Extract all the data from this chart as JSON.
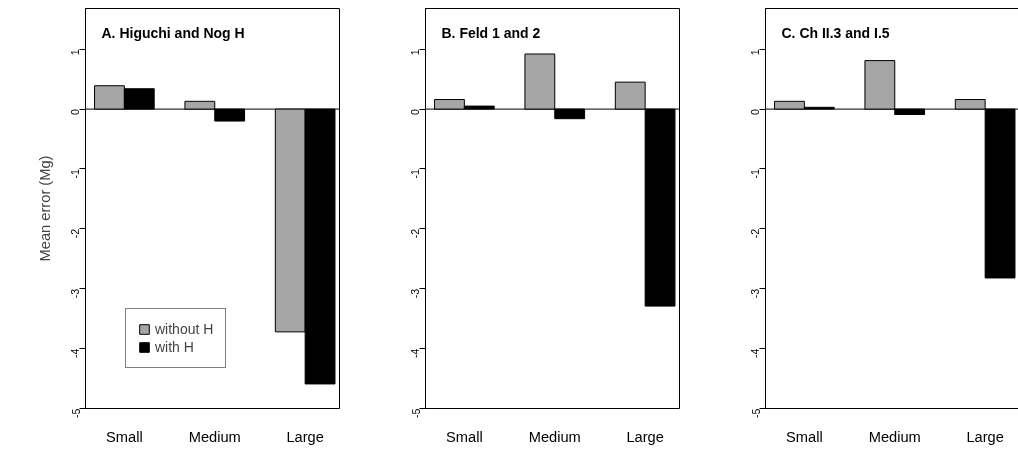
{
  "chart_data": [
    {
      "type": "bar",
      "title": "A. Higuchi and Nog H",
      "ylabel": "Mean error (Mg)",
      "categories": [
        "Small",
        "Medium",
        "Large"
      ],
      "legend": "bottom left",
      "ylim": [
        -5,
        1.68
      ],
      "yticks": [
        -5,
        -4,
        -3,
        -2,
        -1,
        0,
        1
      ],
      "ref_lines": [
        {
          "axis": "y",
          "value": 0,
          "color": "#000000"
        }
      ],
      "series": [
        {
          "name": "without H",
          "color": "#a6a6a6",
          "values": [
            0.39,
            0.13,
            -3.72
          ]
        },
        {
          "name": "with H",
          "color": "#000000",
          "values": [
            0.34,
            -0.2,
            -4.59
          ]
        }
      ]
    },
    {
      "type": "bar",
      "title": "B. Feld 1 and 2",
      "categories": [
        "Small",
        "Medium",
        "Large"
      ],
      "ylim": [
        -5,
        1.68
      ],
      "yticks": [
        -5,
        -4,
        -3,
        -2,
        -1,
        0,
        1
      ],
      "ref_lines": [
        {
          "axis": "y",
          "value": 0,
          "color": "#000000"
        }
      ],
      "series": [
        {
          "color": "#a6a6a6",
          "values": [
            0.16,
            0.92,
            0.45
          ]
        },
        {
          "color": "#000000",
          "values": [
            0.05,
            -0.16,
            -3.29
          ]
        }
      ]
    },
    {
      "type": "bar",
      "title": "C. Ch II.3 and I.5",
      "categories": [
        "Small",
        "Medium",
        "Large"
      ],
      "ylim": [
        -5,
        1.68
      ],
      "yticks": [
        -5,
        -4,
        -3,
        -2,
        -1,
        0,
        1
      ],
      "ref_lines": [
        {
          "axis": "y",
          "value": 0,
          "color": "#000000"
        }
      ],
      "series": [
        {
          "color": "#a6a6a6",
          "values": [
            0.13,
            0.81,
            0.16
          ]
        },
        {
          "color": "#000000",
          "values": [
            0.03,
            -0.09,
            -2.82
          ]
        }
      ]
    }
  ]
}
